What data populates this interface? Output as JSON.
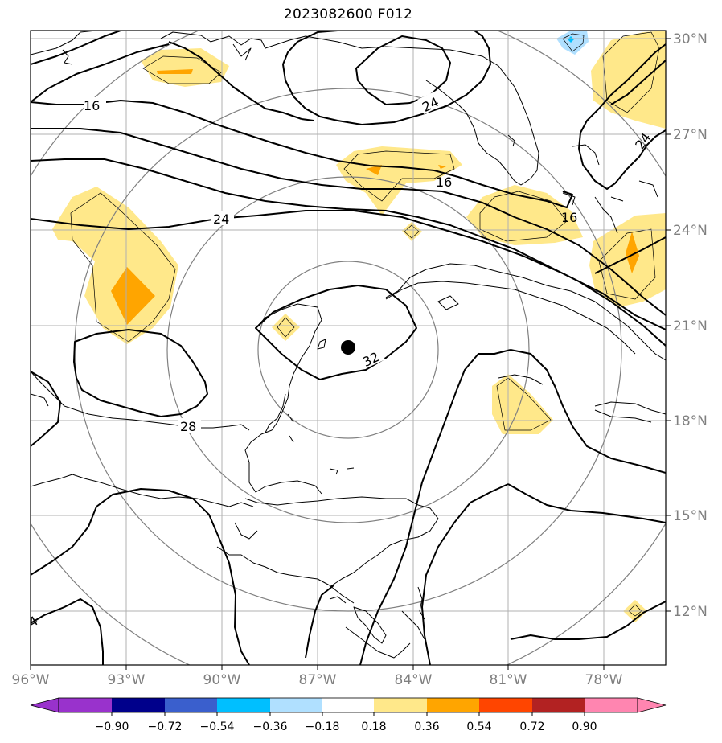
{
  "title": "2023082600 F012",
  "map": {
    "lon_ticks": [
      "96°W",
      "93°W",
      "90°W",
      "87°W",
      "84°W",
      "81°W",
      "78°W"
    ],
    "lat_ticks": [
      "30°N",
      "27°N",
      "24°N",
      "21°N",
      "18°N",
      "15°N",
      "12°N"
    ],
    "contour_labels": [
      "16",
      "24",
      "24",
      "16",
      "16",
      "24",
      "28",
      "32",
      "4"
    ],
    "colors": {
      "coast": "#000000",
      "grid": "#b0b0b0",
      "range_rings": "#808080",
      "marker": "#000000"
    }
  },
  "colorbar": {
    "ticks": [
      "−0.90",
      "−0.72",
      "−0.54",
      "−0.36",
      "−0.18",
      "0.18",
      "0.36",
      "0.54",
      "0.72",
      "0.90"
    ],
    "colors": [
      "#9932cc",
      "#00008b",
      "#3a5fcd",
      "#00bfff",
      "#b0e0ff",
      "#ffffff",
      "#ffe88a",
      "#ffa500",
      "#ff4500",
      "#b22222",
      "#ff85b0"
    ]
  }
}
